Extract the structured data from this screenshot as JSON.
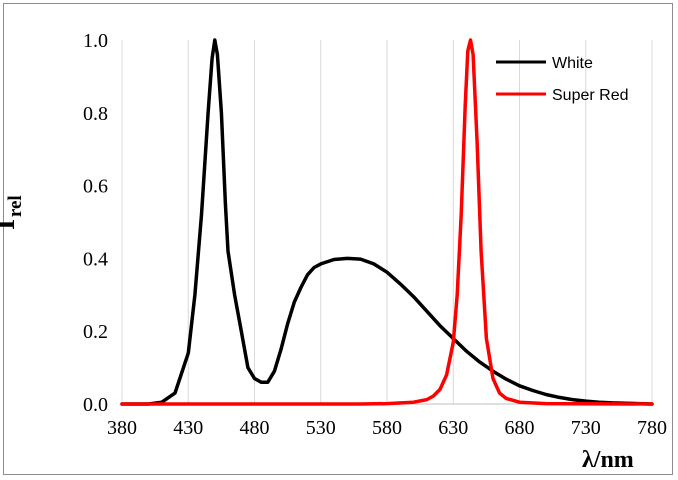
{
  "chart_data": {
    "type": "line",
    "ylabel": "I",
    "ylabel_sub": "rel",
    "xlabel": "λ/nm",
    "xlim": [
      380,
      780
    ],
    "ylim": [
      0,
      1
    ],
    "x_ticks": [
      "380",
      "430",
      "480",
      "530",
      "580",
      "630",
      "680",
      "730",
      "780"
    ],
    "y_ticks": [
      "0.0",
      "0.2",
      "0.4",
      "0.6",
      "0.8",
      "1.0"
    ],
    "grid": "vertical",
    "legend_position": "top-right",
    "series": [
      {
        "name": "White",
        "color": "#000000",
        "x": [
          380,
          400,
          410,
          420,
          430,
          435,
          440,
          445,
          448,
          450,
          452,
          455,
          458,
          460,
          465,
          470,
          475,
          480,
          485,
          490,
          495,
          500,
          505,
          510,
          515,
          520,
          525,
          530,
          540,
          550,
          560,
          570,
          580,
          590,
          600,
          610,
          620,
          630,
          640,
          650,
          660,
          670,
          680,
          690,
          700,
          710,
          720,
          730,
          740,
          750,
          760,
          770,
          780
        ],
        "y": [
          0.0,
          0.0,
          0.005,
          0.03,
          0.14,
          0.3,
          0.52,
          0.8,
          0.95,
          1.0,
          0.96,
          0.8,
          0.55,
          0.42,
          0.3,
          0.2,
          0.1,
          0.07,
          0.06,
          0.06,
          0.09,
          0.15,
          0.22,
          0.28,
          0.32,
          0.355,
          0.375,
          0.385,
          0.397,
          0.4,
          0.398,
          0.385,
          0.362,
          0.33,
          0.295,
          0.255,
          0.215,
          0.18,
          0.145,
          0.115,
          0.09,
          0.068,
          0.05,
          0.037,
          0.026,
          0.018,
          0.012,
          0.008,
          0.005,
          0.003,
          0.002,
          0.001,
          0.0
        ]
      },
      {
        "name": "Super Red",
        "color": "#ff0000",
        "x": [
          380,
          560,
          580,
          600,
          610,
          615,
          620,
          625,
          630,
          633,
          636,
          639,
          641,
          643,
          645,
          648,
          651,
          655,
          660,
          665,
          670,
          680,
          700,
          780
        ],
        "y": [
          0.0,
          0.0,
          0.001,
          0.005,
          0.012,
          0.022,
          0.04,
          0.08,
          0.17,
          0.3,
          0.52,
          0.82,
          0.97,
          1.0,
          0.96,
          0.72,
          0.42,
          0.18,
          0.07,
          0.03,
          0.015,
          0.005,
          0.001,
          0.0
        ]
      }
    ]
  }
}
